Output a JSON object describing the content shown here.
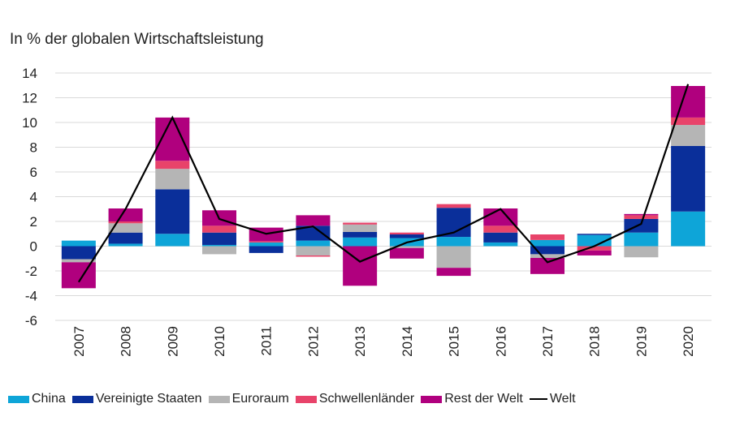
{
  "chart_data": {
    "type": "bar",
    "stacked": true,
    "title": "In % der globalen Wirtschaftsleistung",
    "xlabel": "",
    "ylabel": "",
    "ylim": [
      -6,
      14
    ],
    "yticks": [
      14,
      12,
      10,
      8,
      6,
      4,
      2,
      0,
      -2,
      -4,
      -6
    ],
    "grid": true,
    "legend_position": "bottom",
    "categories": [
      "2007",
      "2008",
      "2009",
      "2010",
      "2011",
      "2012",
      "2013",
      "2014",
      "2015",
      "2016",
      "2017",
      "2018",
      "2019",
      "2020"
    ],
    "series": [
      {
        "name": "China",
        "color": "#0ea5d8",
        "values": [
          0.45,
          0.2,
          1.0,
          0.1,
          0.3,
          0.45,
          0.7,
          0.65,
          0.75,
          0.3,
          0.5,
          0.9,
          1.1,
          2.8
        ]
      },
      {
        "name": "Vereinigte Staaten",
        "color": "#0a2f9a",
        "values": [
          -1.05,
          0.9,
          3.6,
          1.0,
          -0.55,
          1.2,
          0.45,
          0.3,
          2.35,
          0.8,
          -0.65,
          0.1,
          1.1,
          5.3
        ]
      },
      {
        "name": "Euroraum",
        "color": "#b5b5b5",
        "values": [
          -0.25,
          0.75,
          1.65,
          -0.65,
          0,
          -0.75,
          0.6,
          -0.15,
          -1.75,
          0,
          -0.3,
          0,
          -0.9,
          1.7
        ]
      },
      {
        "name": "Schwellenländer",
        "color": "#e8436a",
        "values": [
          0,
          0.15,
          0.65,
          0.55,
          0.1,
          -0.1,
          0.15,
          0.15,
          0.3,
          0.55,
          0.45,
          -0.35,
          0.3,
          0.6
        ]
      },
      {
        "name": "Rest der Welt",
        "color": "#b0007e",
        "values": [
          -2.1,
          1.05,
          3.5,
          1.25,
          1.1,
          0.85,
          -3.2,
          -0.85,
          -0.65,
          1.4,
          -1.3,
          -0.4,
          0.1,
          2.55
        ]
      }
    ],
    "line": {
      "name": "Welt",
      "color": "#000000",
      "values": [
        -2.9,
        3.0,
        10.4,
        2.2,
        1.0,
        1.6,
        -1.25,
        0.3,
        1.1,
        3.0,
        -1.3,
        0.0,
        1.8,
        13.1
      ]
    }
  }
}
